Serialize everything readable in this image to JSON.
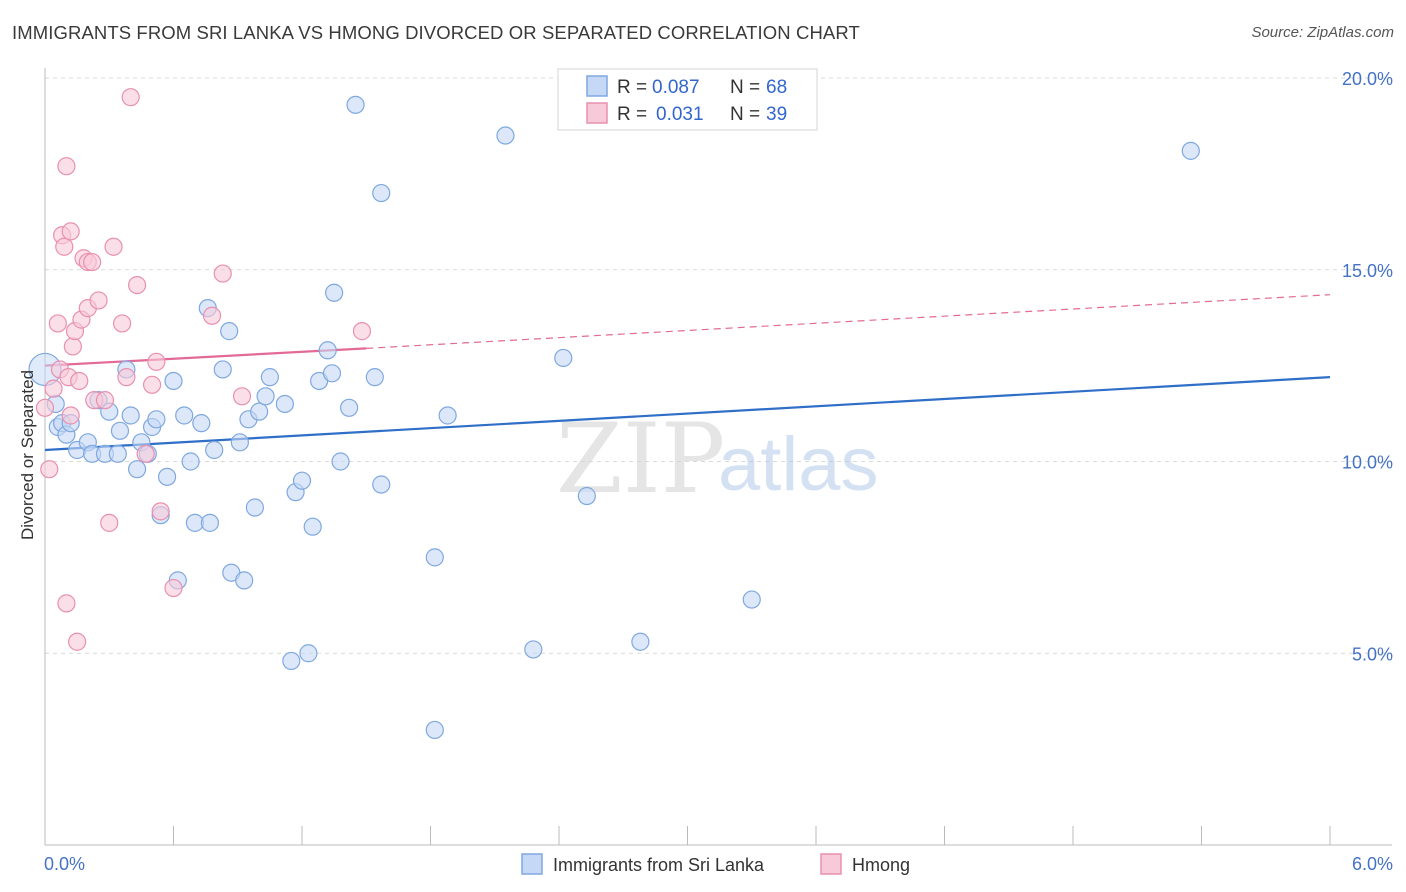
{
  "chart_data": {
    "type": "scatter",
    "title": "IMMIGRANTS FROM SRI LANKA VS HMONG DIVORCED OR SEPARATED CORRELATION CHART",
    "source": "Source: ZipAtlas.com",
    "ylabel": "Divorced or Separated",
    "xlabel": "",
    "xlim": [
      0.0,
      6.0
    ],
    "ylim": [
      0.0,
      20.0
    ],
    "x_tick_labels": [
      "0.0%",
      "6.0%"
    ],
    "y_ticks": [
      5.0,
      10.0,
      15.0,
      20.0
    ],
    "y_tick_labels": [
      "5.0%",
      "10.0%",
      "15.0%",
      "20.0%"
    ],
    "legend": {
      "rows": [
        {
          "r_label": "R = ",
          "r_value": "0.087",
          "n_label": "N = ",
          "n_value": "68"
        },
        {
          "r_label": "R = ",
          "r_value": "0.031",
          "n_label": "N = ",
          "n_value": "39"
        }
      ]
    },
    "watermark": {
      "zip": "ZIP",
      "atlas": "atlas"
    },
    "series": [
      {
        "name": "Immigrants from Sri Lanka",
        "color": "#7fa8e0",
        "fill": "#c5d8f5",
        "line_color": "#2f6fc8",
        "trend": {
          "x": [
            0.0,
            6.0
          ],
          "y": [
            10.3,
            12.2
          ],
          "dashed_from": null
        },
        "points": [
          [
            0.0,
            12.4
          ],
          [
            0.05,
            11.5
          ],
          [
            0.06,
            10.9
          ],
          [
            0.08,
            11.0
          ],
          [
            0.1,
            10.7
          ],
          [
            0.12,
            11.0
          ],
          [
            0.15,
            10.3
          ],
          [
            0.2,
            10.5
          ],
          [
            0.22,
            10.2
          ],
          [
            0.25,
            11.6
          ],
          [
            0.28,
            10.2
          ],
          [
            0.3,
            11.3
          ],
          [
            0.34,
            10.2
          ],
          [
            0.35,
            10.8
          ],
          [
            0.38,
            12.4
          ],
          [
            0.4,
            11.2
          ],
          [
            0.43,
            9.8
          ],
          [
            0.45,
            10.5
          ],
          [
            0.48,
            10.2
          ],
          [
            0.5,
            10.9
          ],
          [
            0.52,
            11.1
          ],
          [
            0.54,
            8.6
          ],
          [
            0.57,
            9.6
          ],
          [
            0.6,
            12.1
          ],
          [
            0.62,
            6.9
          ],
          [
            0.65,
            11.2
          ],
          [
            0.68,
            10.0
          ],
          [
            0.7,
            8.4
          ],
          [
            0.73,
            11.0
          ],
          [
            0.76,
            14.0
          ],
          [
            0.77,
            8.4
          ],
          [
            0.79,
            10.3
          ],
          [
            0.83,
            12.4
          ],
          [
            0.86,
            13.4
          ],
          [
            0.87,
            7.1
          ],
          [
            0.91,
            10.5
          ],
          [
            0.93,
            6.9
          ],
          [
            0.95,
            11.1
          ],
          [
            0.98,
            8.8
          ],
          [
            1.0,
            11.3
          ],
          [
            1.03,
            11.7
          ],
          [
            1.05,
            12.2
          ],
          [
            1.12,
            11.5
          ],
          [
            1.15,
            4.8
          ],
          [
            1.17,
            9.2
          ],
          [
            1.2,
            9.5
          ],
          [
            1.23,
            5.0
          ],
          [
            1.25,
            8.3
          ],
          [
            1.28,
            12.1
          ],
          [
            1.32,
            12.9
          ],
          [
            1.34,
            12.3
          ],
          [
            1.35,
            14.4
          ],
          [
            1.38,
            10.0
          ],
          [
            1.42,
            11.4
          ],
          [
            1.45,
            19.3
          ],
          [
            1.54,
            12.2
          ],
          [
            1.57,
            17.0
          ],
          [
            1.57,
            9.4
          ],
          [
            1.82,
            7.5
          ],
          [
            1.82,
            3.0
          ],
          [
            1.88,
            11.2
          ],
          [
            2.15,
            18.5
          ],
          [
            2.28,
            5.1
          ],
          [
            2.42,
            12.7
          ],
          [
            2.53,
            9.1
          ],
          [
            2.78,
            5.3
          ],
          [
            3.3,
            6.4
          ],
          [
            5.35,
            18.1
          ]
        ]
      },
      {
        "name": "Hmong",
        "color": "#e890b0",
        "fill": "#f8c9d9",
        "line_color": "#e36a96",
        "trend": {
          "x": [
            0.0,
            1.5,
            6.0
          ],
          "y": [
            12.5,
            12.95,
            14.35
          ],
          "dashed_from": 1.5
        },
        "points": [
          [
            0.0,
            11.4
          ],
          [
            0.02,
            9.8
          ],
          [
            0.04,
            11.9
          ],
          [
            0.06,
            13.6
          ],
          [
            0.07,
            12.4
          ],
          [
            0.08,
            15.9
          ],
          [
            0.09,
            15.6
          ],
          [
            0.1,
            6.3
          ],
          [
            0.1,
            17.7
          ],
          [
            0.11,
            12.2
          ],
          [
            0.12,
            16.0
          ],
          [
            0.12,
            11.2
          ],
          [
            0.13,
            13.0
          ],
          [
            0.14,
            13.4
          ],
          [
            0.15,
            5.3
          ],
          [
            0.16,
            12.1
          ],
          [
            0.17,
            13.7
          ],
          [
            0.18,
            15.3
          ],
          [
            0.2,
            14.0
          ],
          [
            0.2,
            15.2
          ],
          [
            0.22,
            15.2
          ],
          [
            0.23,
            11.6
          ],
          [
            0.25,
            14.2
          ],
          [
            0.28,
            11.6
          ],
          [
            0.3,
            8.4
          ],
          [
            0.32,
            15.6
          ],
          [
            0.36,
            13.6
          ],
          [
            0.38,
            12.2
          ],
          [
            0.4,
            19.5
          ],
          [
            0.43,
            14.6
          ],
          [
            0.47,
            10.2
          ],
          [
            0.5,
            12.0
          ],
          [
            0.52,
            12.6
          ],
          [
            0.54,
            8.7
          ],
          [
            0.6,
            6.7
          ],
          [
            0.78,
            13.8
          ],
          [
            0.83,
            14.9
          ],
          [
            0.92,
            11.7
          ],
          [
            1.48,
            13.4
          ]
        ]
      }
    ]
  }
}
